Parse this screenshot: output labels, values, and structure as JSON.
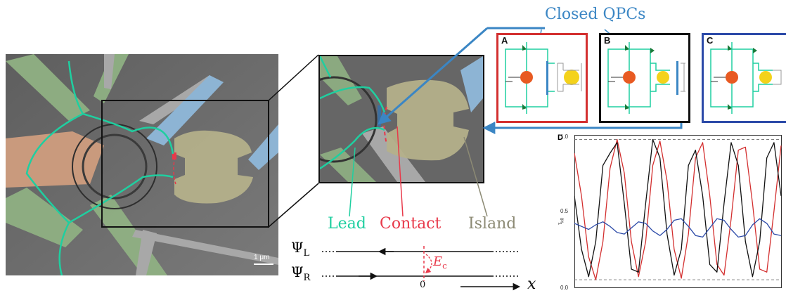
{
  "labels": {
    "closed_qpcs": "Closed QPCs",
    "lead": "Lead",
    "contact": "Contact",
    "island": "Island",
    "scale_bar": "1 μm",
    "psi_l": "Ψ",
    "psi_l_sub": "L",
    "psi_r": "Ψ",
    "psi_r_sub": "R",
    "ec": "E",
    "ec_sub": "c",
    "zero": "0",
    "x": "x"
  },
  "panels": [
    {
      "letter": "A",
      "color": "#d32f2f"
    },
    {
      "letter": "B",
      "color": "#111111"
    },
    {
      "letter": "C",
      "color": "#2c4aa8"
    }
  ],
  "colors": {
    "lead": "#1fcfa0",
    "contact": "#e8394a",
    "island": "#8c8a74",
    "arrow_blue": "#3b86c4",
    "panel_A": "#d32f2f",
    "panel_C": "#2c4aa8"
  },
  "chart_data": {
    "type": "line",
    "panel_label": "D",
    "ylabel": "τ",
    "ylabel_sub": "k0",
    "ylim": [
      0.0,
      1.0
    ],
    "yticks": [
      "0.0",
      "0.5",
      "1.0"
    ],
    "hlines": [
      0.05,
      0.97
    ],
    "series": [
      {
        "color": "#d32f2f",
        "values": [
          0.88,
          0.6,
          0.2,
          0.05,
          0.3,
          0.78,
          0.97,
          0.75,
          0.3,
          0.07,
          0.3,
          0.8,
          0.96,
          0.7,
          0.25,
          0.06,
          0.35,
          0.85,
          0.95,
          0.6,
          0.15,
          0.08,
          0.45,
          0.9,
          0.92,
          0.55,
          0.12,
          0.1,
          0.5,
          0.93
        ]
      },
      {
        "color": "#111111",
        "values": [
          0.6,
          0.25,
          0.07,
          0.3,
          0.8,
          0.88,
          0.95,
          0.55,
          0.12,
          0.1,
          0.55,
          0.97,
          0.85,
          0.35,
          0.08,
          0.25,
          0.8,
          0.9,
          0.6,
          0.15,
          0.1,
          0.55,
          0.95,
          0.8,
          0.3,
          0.07,
          0.3,
          0.85,
          0.95,
          0.6
        ]
      },
      {
        "color": "#2c4aa8",
        "values": [
          0.42,
          0.4,
          0.38,
          0.41,
          0.43,
          0.4,
          0.36,
          0.35,
          0.39,
          0.43,
          0.42,
          0.37,
          0.34,
          0.38,
          0.44,
          0.45,
          0.4,
          0.34,
          0.33,
          0.39,
          0.45,
          0.44,
          0.38,
          0.33,
          0.34,
          0.41,
          0.45,
          0.42,
          0.35,
          0.34
        ]
      }
    ]
  }
}
